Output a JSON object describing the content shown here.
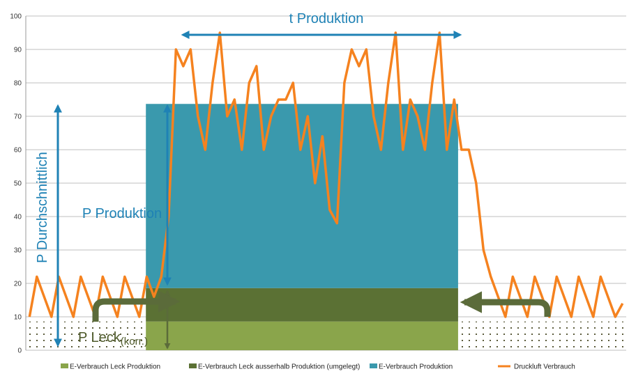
{
  "chart_data": {
    "type": "area",
    "title": "",
    "xlabel": "",
    "ylabel": "",
    "ylim": [
      0,
      100
    ],
    "yticks": [
      "0",
      "10",
      "20",
      "30",
      "40",
      "50",
      "60",
      "70",
      "80",
      "90",
      "100"
    ],
    "grid": true,
    "legend_position": "bottom",
    "production_window": {
      "start": 0.2,
      "end": 0.72
    },
    "bands": [
      {
        "name": "E-Verbrauch Leck Produktion",
        "color": "#8aa54b",
        "from": 0,
        "to": 8.6
      },
      {
        "name": "E-Verbrauch Leck ausserhalb Produktion (umgelegt)",
        "color": "#5b7134",
        "from": 8.6,
        "to": 18.6
      },
      {
        "name": "E-Verbrauch Produktion",
        "color": "#3a99ad",
        "from": 18.6,
        "to": 73.7
      }
    ],
    "series": [
      {
        "name": "Druckluft Verbrauch",
        "color": "#f5821f",
        "values": [
          10,
          22,
          16,
          10,
          22,
          16,
          10,
          22,
          16,
          10,
          22,
          16,
          10,
          22,
          16,
          10,
          22,
          16,
          22,
          40,
          90,
          85,
          90,
          70,
          60,
          80,
          95,
          70,
          75,
          60,
          80,
          85,
          60,
          70,
          75,
          75,
          80,
          60,
          70,
          50,
          64,
          42,
          38,
          80,
          90,
          85,
          90,
          70,
          60,
          80,
          95,
          60,
          75,
          70,
          60,
          80,
          95,
          60,
          75,
          60,
          60,
          50,
          30,
          22,
          16,
          10,
          22,
          16,
          10,
          22,
          16,
          10,
          22,
          16,
          10,
          22,
          16,
          10,
          22,
          16,
          10,
          14
        ]
      }
    ],
    "annotations": {
      "t_produktion": "t Produktion",
      "p_produktion": "P Produktion",
      "p_durchschnittlich": "P Durchschnittlich",
      "p_leck": "P Leck",
      "p_leck_sub": "(korr.)"
    }
  }
}
